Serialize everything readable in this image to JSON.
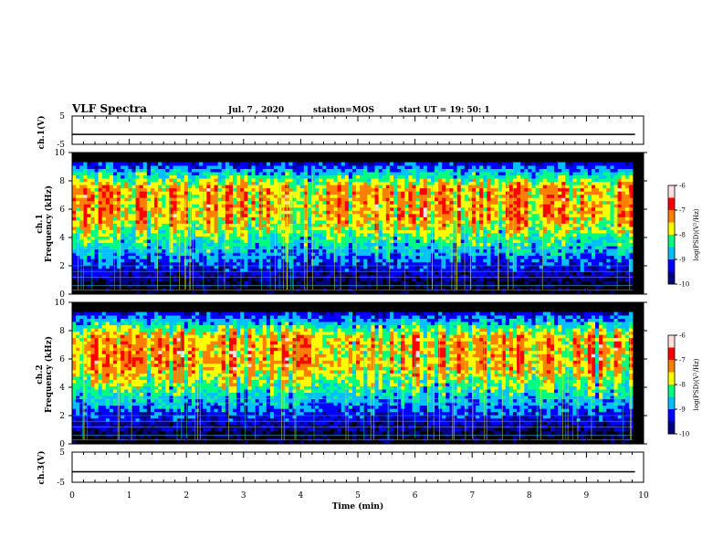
{
  "header": {
    "title": "VLF Spectra",
    "date": "Jul. 7 , 2020",
    "station": "station=MOS",
    "start_ut": "start UT = 19: 50: 1"
  },
  "colors": {
    "spectrum": [
      "#000080",
      "#0000ff",
      "#00c0ff",
      "#00ff80",
      "#ffff00",
      "#ff8000",
      "#ff0000",
      "#ffe0e0"
    ],
    "background": "#000000"
  },
  "chart_data": [
    {
      "type": "line",
      "panel": "ch1-voltage",
      "ylabel": "ch.1(V)",
      "ylim": [
        -5,
        5
      ],
      "yticks": [
        "5",
        "-5"
      ],
      "x": [
        0,
        10
      ],
      "y": [
        -1.5,
        -1.5
      ]
    },
    {
      "type": "heatmap",
      "panel": "ch1-spectrogram",
      "ylabel": "ch.1\nFrequency (kHz)",
      "ylim": [
        0,
        10
      ],
      "yticks": [
        "0",
        "2",
        "4",
        "6",
        "8",
        "10"
      ],
      "xlim": [
        0,
        10
      ],
      "intensity_band_khz": [
        5.5,
        7.5
      ],
      "colorbar": {
        "label": "log(PSD)(V²/Hz)",
        "range": [
          -10,
          -6
        ],
        "ticks": [
          "-6",
          "-7",
          "-8",
          "-9",
          "-10"
        ]
      }
    },
    {
      "type": "heatmap",
      "panel": "ch2-spectrogram",
      "ylabel": "ch.2\nFrequency (kHz)",
      "ylim": [
        0,
        10
      ],
      "yticks": [
        "0",
        "2",
        "4",
        "6",
        "8",
        "10"
      ],
      "xlim": [
        0,
        10
      ],
      "intensity_band_khz": [
        5.5,
        7.5
      ],
      "colorbar": {
        "label": "log(PSD)(V²/Hz)",
        "range": [
          -10,
          -6
        ],
        "ticks": [
          "-6",
          "-7",
          "-8",
          "-9",
          "-10"
        ]
      }
    },
    {
      "type": "line",
      "panel": "ch3-voltage",
      "ylabel": "ch.3(V)",
      "ylim": [
        -5,
        5
      ],
      "yticks": [
        "5",
        "-5"
      ],
      "x": [
        0,
        10
      ],
      "y": [
        -1.5,
        -1.5
      ]
    }
  ],
  "xaxis": {
    "label": "Time (min)",
    "ticks": [
      "0",
      "1",
      "2",
      "3",
      "4",
      "5",
      "6",
      "7",
      "8",
      "9",
      "10"
    ]
  }
}
